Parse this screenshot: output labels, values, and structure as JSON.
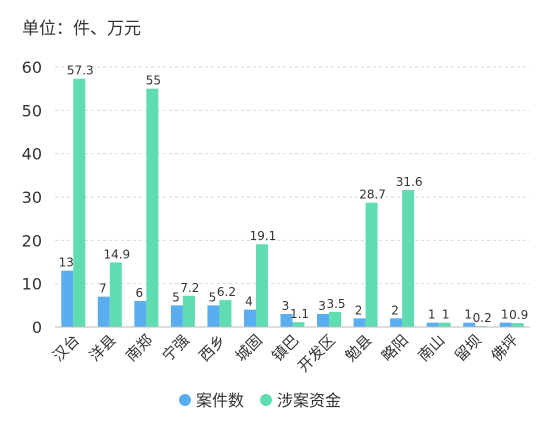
{
  "unit_label": "单位：件、万元",
  "chart_data": {
    "type": "bar",
    "categories": [
      "汉台",
      "洋县",
      "南郑",
      "宁强",
      "西乡",
      "城固",
      "镇巴",
      "开发区",
      "勉县",
      "略阳",
      "南山",
      "留坝",
      "佛坪"
    ],
    "series": [
      {
        "name": "案件数",
        "color": "#5aaef0",
        "values": [
          13,
          7,
          6,
          5,
          5,
          4,
          3,
          3,
          2,
          2,
          1,
          1,
          1
        ]
      },
      {
        "name": "涉案资金",
        "color": "#5fdcb0",
        "values": [
          57.3,
          14.9,
          55,
          7.2,
          6.2,
          19.1,
          1.1,
          3.5,
          28.7,
          31.6,
          1,
          0.2,
          0.9
        ]
      }
    ],
    "data_labels": [
      [
        "13",
        "7",
        "6",
        "5",
        "5",
        "4",
        "3",
        "3",
        "2",
        "2",
        "1",
        "1",
        "1"
      ],
      [
        "57.3",
        "14.9",
        "55",
        "7.2",
        "6.2",
        "19.1",
        "1.1",
        "3.5",
        "28.7",
        "31.6",
        "1",
        "0.2",
        "0.9"
      ]
    ],
    "yticks": [
      0,
      10,
      20,
      30,
      40,
      50,
      60
    ],
    "ylim": [
      0,
      60
    ],
    "grid": true,
    "legend": "bottom-center",
    "x_tick_rotation": -45
  }
}
